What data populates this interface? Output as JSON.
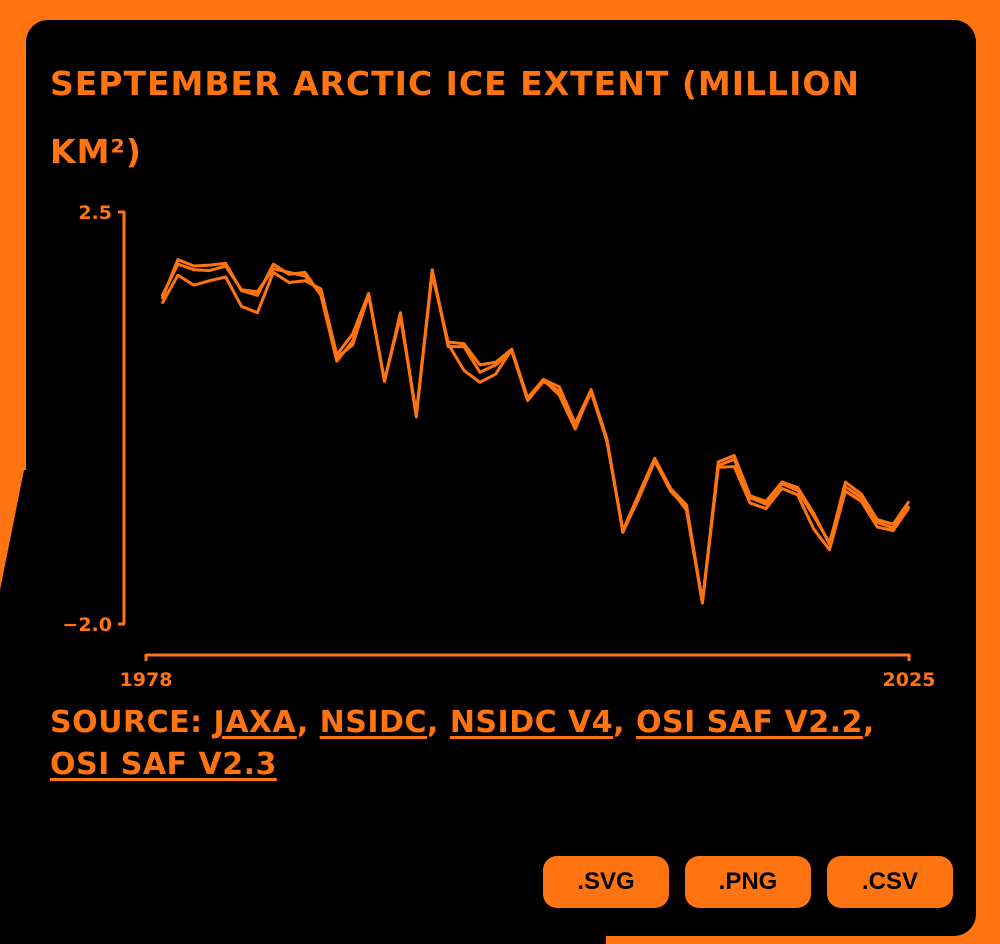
{
  "title": "September Arctic Ice Extent (million km²)",
  "source": {
    "prefix": "Source: ",
    "links": [
      "JAXA",
      "NSIDC",
      "NSIDC V4",
      "OSI SAF V2.2",
      "OSI SAF V2.3"
    ]
  },
  "buttons": {
    "svg": ".svg",
    "png": ".png",
    "csv": ".csv"
  },
  "colors": {
    "accent": "#ff7410",
    "background": "#000000"
  },
  "chart_data": {
    "type": "line",
    "title": "September Arctic Ice Extent (million km²)",
    "xlabel": "",
    "ylabel": "",
    "xlim": [
      1978,
      2025
    ],
    "ylim": [
      -2.0,
      2.5
    ],
    "x_tick_labels": [
      "1978",
      "2025"
    ],
    "y_tick_labels": [
      "2.5",
      "−2.0"
    ],
    "grid": false,
    "x": [
      1978,
      1979,
      1980,
      1981,
      1982,
      1983,
      1984,
      1985,
      1986,
      1987,
      1988,
      1989,
      1990,
      1991,
      1992,
      1993,
      1994,
      1995,
      1996,
      1997,
      1998,
      1999,
      2000,
      2001,
      2002,
      2003,
      2004,
      2005,
      2006,
      2007,
      2008,
      2009,
      2010,
      2011,
      2012,
      2013,
      2014,
      2015,
      2016,
      2017,
      2018,
      2019,
      2020,
      2021,
      2022,
      2023,
      2024,
      2025
    ],
    "series": [
      {
        "values": [
          1.55,
          1.98,
          1.91,
          1.92,
          1.94,
          1.64,
          1.59,
          1.93,
          1.82,
          1.84,
          1.59,
          0.87,
          1.09,
          1.61,
          0.65,
          1.39,
          0.28,
          1.86,
          1.06,
          0.77,
          0.64,
          0.73,
          1.0,
          0.44,
          0.65,
          0.54,
          0.16,
          0.53,
          0.0,
          -1.0,
          -0.61,
          -0.21,
          -0.52,
          -0.7,
          -1.77,
          -0.23,
          -0.16,
          -0.6,
          -0.66,
          -0.45,
          -0.51,
          -0.79,
          -1.13,
          -0.45,
          -0.58,
          -0.86,
          -0.91,
          -0.66
        ]
      },
      {
        "values": [
          1.58,
          1.93,
          1.87,
          1.86,
          1.91,
          1.65,
          1.63,
          1.88,
          1.84,
          1.8,
          1.61,
          0.91,
          1.05,
          1.59,
          0.66,
          1.35,
          0.3,
          1.82,
          1.08,
          1.06,
          0.83,
          0.86,
          1.0,
          0.47,
          0.67,
          0.59,
          0.19,
          0.56,
          0.02,
          -0.99,
          -0.63,
          -0.22,
          -0.55,
          -0.73,
          -1.75,
          -0.27,
          -0.2,
          -0.62,
          -0.69,
          -0.47,
          -0.54,
          -0.82,
          -1.11,
          -0.5,
          -0.62,
          -0.89,
          -0.95,
          -0.71
        ]
      },
      {
        "values": [
          1.5,
          1.81,
          1.7,
          1.75,
          1.79,
          1.47,
          1.4,
          1.84,
          1.73,
          1.75,
          1.66,
          0.94,
          1.17,
          1.61,
          0.65,
          1.4,
          0.26,
          1.87,
          1.03,
          1.03,
          0.75,
          0.83,
          0.98,
          0.45,
          0.67,
          0.5,
          0.13,
          0.55,
          -0.01,
          -0.98,
          -0.58,
          -0.19,
          -0.52,
          -0.76,
          -1.77,
          -0.29,
          -0.28,
          -0.68,
          -0.74,
          -0.52,
          -0.59,
          -0.96,
          -1.19,
          -0.55,
          -0.66,
          -0.94,
          -0.98,
          -0.73
        ]
      }
    ]
  }
}
